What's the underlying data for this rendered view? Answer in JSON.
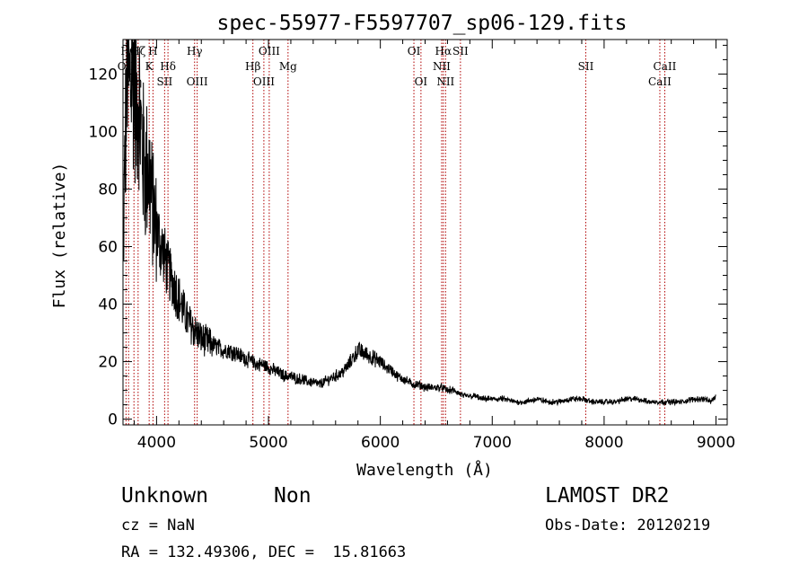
{
  "chart_data": {
    "type": "line",
    "title": "spec-55977-F5597707_sp06-129.fits",
    "xlabel": "Wavelength (Å)",
    "ylabel": "Flux (relative)",
    "xlim": [
      3700,
      9100
    ],
    "ylim": [
      -2,
      132
    ],
    "xticks": [
      4000,
      5000,
      6000,
      7000,
      8000,
      9000
    ],
    "yticks": [
      0,
      20,
      40,
      60,
      80,
      100,
      120
    ],
    "grid": false,
    "series": [
      {
        "x": [
          3700,
          3720,
          3740,
          3760,
          3780,
          3800,
          3820,
          3840,
          3860,
          3880,
          3900,
          3920,
          3940,
          3960,
          3980,
          4000,
          4020,
          4040,
          4060,
          4080,
          4100,
          4120,
          4140,
          4160,
          4180,
          4200,
          4220,
          4240,
          4260,
          4280,
          4300,
          4320,
          4340,
          4360,
          4380,
          4400,
          4450,
          4500,
          4550,
          4600,
          4650,
          4700,
          4750,
          4800,
          4850,
          4900,
          4950,
          5000,
          5050,
          5100,
          5150,
          5200,
          5250,
          5300,
          5350,
          5400,
          5450,
          5500,
          5550,
          5600,
          5650,
          5700,
          5750,
          5800,
          5850,
          5900,
          5950,
          6000,
          6050,
          6100,
          6150,
          6200,
          6250,
          6300,
          6350,
          6400,
          6450,
          6500,
          6550,
          6600,
          6650,
          6700,
          6750,
          6800,
          6850,
          6900,
          7000,
          7100,
          7200,
          7300,
          7400,
          7500,
          7600,
          7700,
          7800,
          7900,
          8000,
          8100,
          8200,
          8300,
          8400,
          8500,
          8600,
          8700,
          8800,
          8900,
          8950,
          9000
        ],
        "y": [
          52,
          95,
          128,
          112,
          125,
          120,
          108,
          115,
          100,
          92,
          85,
          88,
          84,
          75,
          70,
          66,
          63,
          60,
          58,
          55,
          52,
          50,
          48,
          46,
          44,
          42,
          40,
          38,
          36,
          34,
          33,
          32,
          31,
          30,
          29,
          28,
          27,
          26,
          25,
          24,
          24,
          23,
          22,
          21,
          20,
          19,
          19,
          18,
          17,
          16,
          15,
          15,
          14,
          14,
          13,
          13,
          12,
          13,
          14,
          15,
          16,
          18,
          21,
          24,
          23,
          22,
          21,
          20,
          18,
          17,
          15,
          14,
          13,
          12,
          12,
          11,
          11,
          11,
          11,
          10,
          10,
          9,
          8,
          8,
          8,
          7,
          7,
          7,
          6,
          6,
          7,
          6,
          6,
          7,
          7,
          6,
          6,
          6,
          7,
          7,
          6,
          6,
          6,
          6,
          7,
          7,
          6,
          8
        ]
      }
    ],
    "line_ids": [
      {
        "label": "OII",
        "x": 3727,
        "row": 2
      },
      {
        "label": "Hθ",
        "x": 3750,
        "row": 1
      },
      {
        "label": "Hη",
        "x": 3798,
        "row": 3
      },
      {
        "label": "Hζ",
        "x": 3835,
        "row": 1
      },
      {
        "label": "K",
        "x": 3934,
        "row": 2
      },
      {
        "label": "H",
        "x": 3968,
        "row": 1
      },
      {
        "label": "SII",
        "x": 4072,
        "row": 3
      },
      {
        "label": "Hδ",
        "x": 4102,
        "row": 2
      },
      {
        "label": "Hγ",
        "x": 4340,
        "row": 1
      },
      {
        "label": "OIII",
        "x": 4363,
        "row": 3
      },
      {
        "label": "Hβ",
        "x": 4861,
        "row": 2
      },
      {
        "label": "OIII",
        "x": 4959,
        "row": 3
      },
      {
        "label": "OIII",
        "x": 5007,
        "row": 1
      },
      {
        "label": "Mg",
        "x": 5175,
        "row": 2
      },
      {
        "label": "OI",
        "x": 6300,
        "row": 1
      },
      {
        "label": "OI",
        "x": 6363,
        "row": 3
      },
      {
        "label": "NII",
        "x": 6548,
        "row": 2
      },
      {
        "label": "Hα",
        "x": 6563,
        "row": 1
      },
      {
        "label": "NII",
        "x": 6583,
        "row": 3
      },
      {
        "label": "SII",
        "x": 6716,
        "row": 1
      },
      {
        "label": "SII",
        "x": 7836,
        "row": 2
      },
      {
        "label": "CaII",
        "x": 8498,
        "row": 3
      },
      {
        "label": "CaII",
        "x": 8542,
        "row": 2
      }
    ]
  },
  "info": {
    "object_class": "Unknown",
    "subclass": "Non",
    "survey": "LAMOST DR2",
    "cz": "cz = NaN",
    "obs_date": "Obs-Date: 20120219",
    "coords": "RA = 132.49306, DEC =  15.81663"
  }
}
